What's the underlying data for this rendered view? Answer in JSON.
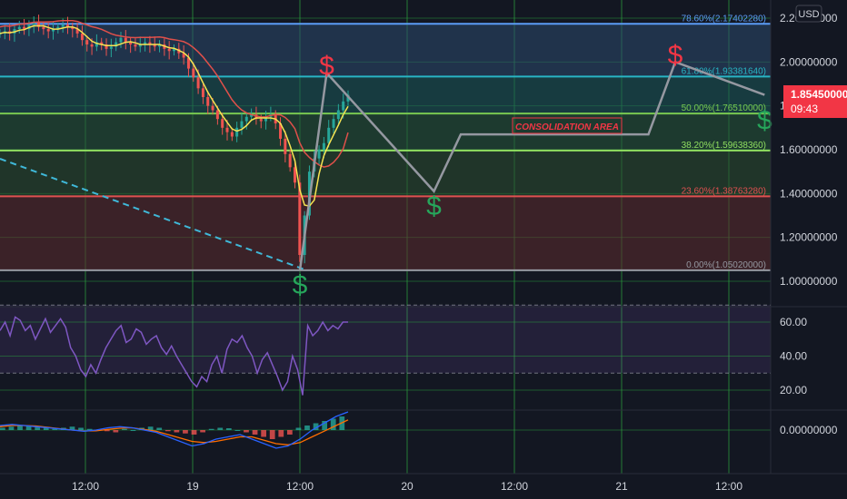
{
  "currency": "USD",
  "colors": {
    "background": "#131722",
    "grid_vertical": "#2a9d3c",
    "grid_horizontal": "#3a3f4b",
    "price_badge": "#f23645",
    "rsi": "#7e57c2",
    "ma_fast": "#f7e452",
    "ma_slow": "#e0504a",
    "candle_up": "#26a69a",
    "candle_down": "#ef5350",
    "path": "#9598a1",
    "trendline": "#3fb8d8",
    "buy_sign": "#26a65b",
    "sell_sign": "#f23645"
  },
  "price_axis": {
    "ticks": [
      "2.20000000",
      "2.00000000",
      "1.80000000",
      "1.60000000",
      "1.40000000",
      "1.20000000",
      "1.00000000"
    ],
    "current_price": "1.85450000",
    "countdown": "09:43"
  },
  "rsi_axis": {
    "ticks": [
      "60.00",
      "40.00",
      "20.00"
    ]
  },
  "macd_axis": {
    "ticks": [
      "0.00000000"
    ]
  },
  "time_axis": {
    "labels": [
      "12:00",
      "19",
      "12:00",
      "20",
      "12:00",
      "21",
      "12:00"
    ]
  },
  "fib_levels": [
    {
      "label": "78.60%(2.17402280)",
      "color": "#5b9cf6"
    },
    {
      "label": "61.80%(1.93381640)",
      "color": "#28b5c4"
    },
    {
      "label": "50.00%(1.76510000)",
      "color": "#78c850"
    },
    {
      "label": "38.20%(1.59638360)",
      "color": "#90e060"
    },
    {
      "label": "23.60%(1.38763280)",
      "color": "#e05050"
    },
    {
      "label": "0.00%(1.05020000)",
      "color": "#9598a1"
    }
  ],
  "annotation": {
    "text": "CONSOLIDATION AREA"
  },
  "signs": {
    "dollar": "$"
  },
  "chart_data": {
    "type": "line",
    "title": "",
    "price_axis_range": [
      0.93,
      2.23
    ],
    "projected_path": [
      {
        "x": "19 12:00",
        "y": 1.05
      },
      {
        "x": "19 15:00",
        "y": 1.95
      },
      {
        "x": "20 03:00",
        "y": 1.41
      },
      {
        "x": "20 06:00",
        "y": 1.67
      },
      {
        "x": "21 03:00",
        "y": 1.67
      },
      {
        "x": "21 06:00",
        "y": 2.0
      },
      {
        "x": "21 16:00",
        "y": 1.85
      }
    ],
    "fibonacci": [
      {
        "level": "78.60%",
        "price": 2.1740228
      },
      {
        "level": "61.80%",
        "price": 1.9338164
      },
      {
        "level": "50.00%",
        "price": 1.7651
      },
      {
        "level": "38.20%",
        "price": 1.5963836
      },
      {
        "level": "23.60%",
        "price": 1.3876328
      },
      {
        "level": "0.00%",
        "price": 1.0502
      }
    ],
    "price_series": [
      2.13,
      2.14,
      2.13,
      2.15,
      2.16,
      2.15,
      2.17,
      2.18,
      2.16,
      2.15,
      2.14,
      2.15,
      2.16,
      2.17,
      2.16,
      2.15,
      2.13,
      2.1,
      2.08,
      2.07,
      2.09,
      2.08,
      2.06,
      2.07,
      2.09,
      2.11,
      2.09,
      2.08,
      2.07,
      2.08,
      2.09,
      2.08,
      2.07,
      2.08,
      2.06,
      2.05,
      2.06,
      2.04,
      2.02,
      1.97,
      1.93,
      1.88,
      1.84,
      1.8,
      1.78,
      1.74,
      1.7,
      1.68,
      1.66,
      1.7,
      1.73,
      1.75,
      1.76,
      1.74,
      1.73,
      1.75,
      1.76,
      1.72,
      1.65,
      1.58,
      1.52,
      1.45,
      1.12,
      1.3,
      1.5,
      1.56,
      1.6,
      1.63,
      1.7,
      1.74,
      1.78,
      1.82,
      1.85
    ],
    "sell_signs": [
      {
        "x": "19 15:00",
        "y": 1.95
      },
      {
        "x": "21 06:00",
        "y": 2.0
      }
    ],
    "buy_signs": [
      {
        "x": "19 12:00",
        "y": 1.05
      },
      {
        "x": "20 03:00",
        "y": 1.41
      },
      {
        "x": "21 16:00",
        "y": 1.8
      }
    ],
    "rsi": {
      "levels": [
        70,
        50,
        30
      ],
      "ticks": [
        60,
        40,
        20
      ],
      "range": [
        7,
        77
      ],
      "values": [
        55,
        60,
        52,
        63,
        61,
        55,
        58,
        50,
        56,
        62,
        54,
        58,
        62,
        57,
        45,
        40,
        32,
        28,
        35,
        30,
        38,
        45,
        50,
        55,
        58,
        48,
        50,
        56,
        54,
        47,
        50,
        52,
        45,
        41,
        46,
        40,
        35,
        30,
        25,
        22,
        28,
        25,
        35,
        40,
        30,
        44,
        50,
        48,
        52,
        45,
        40,
        30,
        38,
        42,
        35,
        28,
        20,
        25,
        40,
        32,
        17,
        58,
        52,
        55,
        60,
        55,
        58,
        56,
        60,
        60
      ]
    },
    "macd": {
      "histogram": [
        0.01,
        0.015,
        0.02,
        0.02,
        0.015,
        0.01,
        0.005,
        0.01,
        0.015,
        0.01,
        0.005,
        0.0,
        -0.005,
        -0.01,
        0.005,
        0.0,
        0.01,
        0.015,
        0.01,
        -0.005,
        -0.01,
        -0.015,
        -0.02,
        -0.01,
        0.005,
        0.01,
        0.008,
        0.0,
        -0.01,
        -0.02,
        -0.03,
        -0.04,
        -0.03,
        -0.02,
        0.01,
        0.02,
        0.03,
        0.04,
        0.05,
        0.06
      ],
      "macd_line": [
        0.02,
        0.025,
        0.02,
        0.015,
        0.01,
        0.005,
        0.0,
        -0.005,
        0.0,
        0.01,
        0.015,
        0.01,
        0.0,
        -0.01,
        -0.03,
        -0.05,
        -0.07,
        -0.06,
        -0.04,
        -0.03,
        -0.02,
        -0.04,
        -0.06,
        -0.08,
        -0.07,
        -0.04,
        0.0,
        0.03,
        0.06,
        0.08
      ],
      "signal_line": [
        0.015,
        0.02,
        0.02,
        0.018,
        0.012,
        0.006,
        0.0,
        -0.004,
        -0.003,
        0.003,
        0.008,
        0.01,
        0.003,
        -0.005,
        -0.02,
        -0.035,
        -0.05,
        -0.055,
        -0.05,
        -0.04,
        -0.03,
        -0.03,
        -0.045,
        -0.06,
        -0.065,
        -0.055,
        -0.03,
        -0.005,
        0.02,
        0.045
      ]
    }
  }
}
